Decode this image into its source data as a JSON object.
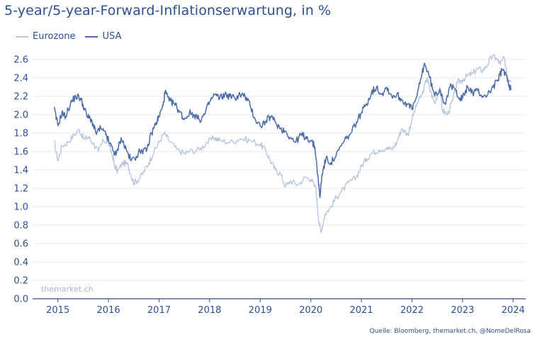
{
  "title": "5-year/5-year-Forward-Inflationserwartung, in %",
  "watermark": "themarket.ch",
  "source": "Quelle: Bloomberg, themarket.ch, @NomeDelRosa",
  "colors": {
    "eurozone": "#b9c6dc",
    "usa": "#4a6aa8",
    "text": "#2f4f8f",
    "grid": "#e6e8ec"
  },
  "chart_data": {
    "type": "line",
    "title": "5-year/5-year-Forward-Inflationserwartung, in %",
    "xlabel": "",
    "ylabel": "",
    "xlim": [
      2014.5,
      2024.25
    ],
    "ylim": [
      0,
      2.6
    ],
    "yticks": [
      0.0,
      0.2,
      0.4,
      0.6,
      0.8,
      1.0,
      1.2,
      1.4,
      1.6,
      1.8,
      2.0,
      2.2,
      2.4,
      2.6
    ],
    "ytick_labels": [
      "0.0",
      "0.2",
      "0.4",
      "0.6",
      "0.8",
      "1.0",
      "1.2",
      "1.4",
      "1.6",
      "1.8",
      "2.0",
      "2.2",
      "2.4",
      "2.6"
    ],
    "xticks": [
      2015,
      2016,
      2017,
      2018,
      2019,
      2020,
      2021,
      2022,
      2023,
      2024
    ],
    "xtick_labels": [
      "2015",
      "2016",
      "2017",
      "2018",
      "2019",
      "2020",
      "2021",
      "2022",
      "2023",
      "2024"
    ],
    "grid": true,
    "legend": "top-left",
    "series": [
      {
        "name": "Eurozone",
        "color": "#b9c6dc",
        "points": [
          [
            2014.92,
            1.72
          ],
          [
            2015.0,
            1.5
          ],
          [
            2015.08,
            1.66
          ],
          [
            2015.2,
            1.7
          ],
          [
            2015.32,
            1.78
          ],
          [
            2015.42,
            1.84
          ],
          [
            2015.52,
            1.73
          ],
          [
            2015.6,
            1.76
          ],
          [
            2015.7,
            1.69
          ],
          [
            2015.8,
            1.6
          ],
          [
            2015.9,
            1.72
          ],
          [
            2016.0,
            1.7
          ],
          [
            2016.08,
            1.55
          ],
          [
            2016.12,
            1.45
          ],
          [
            2016.18,
            1.38
          ],
          [
            2016.28,
            1.48
          ],
          [
            2016.38,
            1.46
          ],
          [
            2016.45,
            1.34
          ],
          [
            2016.5,
            1.26
          ],
          [
            2016.6,
            1.3
          ],
          [
            2016.7,
            1.38
          ],
          [
            2016.8,
            1.48
          ],
          [
            2016.9,
            1.6
          ],
          [
            2017.0,
            1.7
          ],
          [
            2017.1,
            1.8
          ],
          [
            2017.2,
            1.72
          ],
          [
            2017.35,
            1.62
          ],
          [
            2017.5,
            1.58
          ],
          [
            2017.6,
            1.6
          ],
          [
            2017.8,
            1.62
          ],
          [
            2017.95,
            1.7
          ],
          [
            2018.1,
            1.75
          ],
          [
            2018.2,
            1.72
          ],
          [
            2018.4,
            1.7
          ],
          [
            2018.6,
            1.74
          ],
          [
            2018.8,
            1.72
          ],
          [
            2019.0,
            1.68
          ],
          [
            2019.1,
            1.62
          ],
          [
            2019.2,
            1.5
          ],
          [
            2019.3,
            1.4
          ],
          [
            2019.4,
            1.36
          ],
          [
            2019.5,
            1.22
          ],
          [
            2019.6,
            1.28
          ],
          [
            2019.75,
            1.24
          ],
          [
            2019.9,
            1.32
          ],
          [
            2020.0,
            1.3
          ],
          [
            2020.1,
            1.2
          ],
          [
            2020.15,
            0.88
          ],
          [
            2020.2,
            0.72
          ],
          [
            2020.28,
            0.92
          ],
          [
            2020.4,
            1.0
          ],
          [
            2020.5,
            1.1
          ],
          [
            2020.6,
            1.16
          ],
          [
            2020.75,
            1.26
          ],
          [
            2020.9,
            1.32
          ],
          [
            2021.0,
            1.44
          ],
          [
            2021.1,
            1.52
          ],
          [
            2021.2,
            1.58
          ],
          [
            2021.35,
            1.62
          ],
          [
            2021.5,
            1.64
          ],
          [
            2021.6,
            1.62
          ],
          [
            2021.7,
            1.7
          ],
          [
            2021.8,
            1.85
          ],
          [
            2021.92,
            1.78
          ],
          [
            2022.0,
            1.95
          ],
          [
            2022.1,
            2.12
          ],
          [
            2022.2,
            2.22
          ],
          [
            2022.3,
            2.4
          ],
          [
            2022.35,
            2.28
          ],
          [
            2022.45,
            2.12
          ],
          [
            2022.55,
            2.3
          ],
          [
            2022.6,
            2.05
          ],
          [
            2022.7,
            2.0
          ],
          [
            2022.8,
            2.15
          ],
          [
            2022.9,
            2.35
          ],
          [
            2023.0,
            2.38
          ],
          [
            2023.1,
            2.42
          ],
          [
            2023.2,
            2.45
          ],
          [
            2023.3,
            2.5
          ],
          [
            2023.4,
            2.48
          ],
          [
            2023.5,
            2.55
          ],
          [
            2023.6,
            2.65
          ],
          [
            2023.68,
            2.6
          ],
          [
            2023.75,
            2.55
          ],
          [
            2023.82,
            2.62
          ],
          [
            2023.9,
            2.4
          ],
          [
            2023.95,
            2.38
          ]
        ]
      },
      {
        "name": "USA",
        "color": "#4a6aa8",
        "points": [
          [
            2014.92,
            2.08
          ],
          [
            2015.0,
            1.88
          ],
          [
            2015.08,
            2.02
          ],
          [
            2015.15,
            1.98
          ],
          [
            2015.25,
            2.12
          ],
          [
            2015.35,
            2.2
          ],
          [
            2015.45,
            2.18
          ],
          [
            2015.5,
            2.1
          ],
          [
            2015.58,
            1.98
          ],
          [
            2015.66,
            1.95
          ],
          [
            2015.75,
            1.8
          ],
          [
            2015.85,
            1.85
          ],
          [
            2015.95,
            1.78
          ],
          [
            2016.0,
            1.72
          ],
          [
            2016.1,
            1.6
          ],
          [
            2016.15,
            1.56
          ],
          [
            2016.25,
            1.75
          ],
          [
            2016.35,
            1.62
          ],
          [
            2016.45,
            1.5
          ],
          [
            2016.55,
            1.55
          ],
          [
            2016.65,
            1.62
          ],
          [
            2016.75,
            1.6
          ],
          [
            2016.85,
            1.8
          ],
          [
            2016.95,
            1.92
          ],
          [
            2017.0,
            1.98
          ],
          [
            2017.08,
            2.1
          ],
          [
            2017.12,
            2.25
          ],
          [
            2017.2,
            2.15
          ],
          [
            2017.3,
            2.12
          ],
          [
            2017.4,
            2.04
          ],
          [
            2017.5,
            1.95
          ],
          [
            2017.6,
            2.02
          ],
          [
            2017.7,
            2.0
          ],
          [
            2017.8,
            1.94
          ],
          [
            2017.9,
            2.0
          ],
          [
            2018.0,
            2.14
          ],
          [
            2018.1,
            2.22
          ],
          [
            2018.2,
            2.18
          ],
          [
            2018.3,
            2.22
          ],
          [
            2018.4,
            2.2
          ],
          [
            2018.5,
            2.18
          ],
          [
            2018.6,
            2.22
          ],
          [
            2018.7,
            2.2
          ],
          [
            2018.8,
            2.1
          ],
          [
            2018.9,
            1.95
          ],
          [
            2019.0,
            1.88
          ],
          [
            2019.1,
            1.92
          ],
          [
            2019.2,
            1.98
          ],
          [
            2019.3,
            1.92
          ],
          [
            2019.4,
            1.85
          ],
          [
            2019.5,
            1.82
          ],
          [
            2019.6,
            1.75
          ],
          [
            2019.7,
            1.7
          ],
          [
            2019.8,
            1.78
          ],
          [
            2019.9,
            1.76
          ],
          [
            2020.0,
            1.72
          ],
          [
            2020.08,
            1.65
          ],
          [
            2020.15,
            1.28
          ],
          [
            2020.18,
            1.1
          ],
          [
            2020.22,
            1.35
          ],
          [
            2020.3,
            1.52
          ],
          [
            2020.4,
            1.48
          ],
          [
            2020.5,
            1.55
          ],
          [
            2020.6,
            1.66
          ],
          [
            2020.7,
            1.74
          ],
          [
            2020.8,
            1.8
          ],
          [
            2020.9,
            1.92
          ],
          [
            2021.0,
            2.02
          ],
          [
            2021.1,
            2.12
          ],
          [
            2021.2,
            2.24
          ],
          [
            2021.3,
            2.3
          ],
          [
            2021.4,
            2.22
          ],
          [
            2021.5,
            2.3
          ],
          [
            2021.6,
            2.2
          ],
          [
            2021.7,
            2.22
          ],
          [
            2021.8,
            2.16
          ],
          [
            2021.9,
            2.12
          ],
          [
            2022.0,
            2.06
          ],
          [
            2022.1,
            2.2
          ],
          [
            2022.2,
            2.45
          ],
          [
            2022.25,
            2.56
          ],
          [
            2022.35,
            2.4
          ],
          [
            2022.45,
            2.2
          ],
          [
            2022.55,
            2.28
          ],
          [
            2022.65,
            2.12
          ],
          [
            2022.75,
            2.3
          ],
          [
            2022.85,
            2.28
          ],
          [
            2022.95,
            2.18
          ],
          [
            2023.0,
            2.18
          ],
          [
            2023.1,
            2.3
          ],
          [
            2023.2,
            2.24
          ],
          [
            2023.3,
            2.26
          ],
          [
            2023.4,
            2.2
          ],
          [
            2023.5,
            2.22
          ],
          [
            2023.6,
            2.3
          ],
          [
            2023.7,
            2.38
          ],
          [
            2023.78,
            2.48
          ],
          [
            2023.85,
            2.46
          ],
          [
            2023.92,
            2.3
          ],
          [
            2023.96,
            2.28
          ]
        ]
      }
    ]
  }
}
